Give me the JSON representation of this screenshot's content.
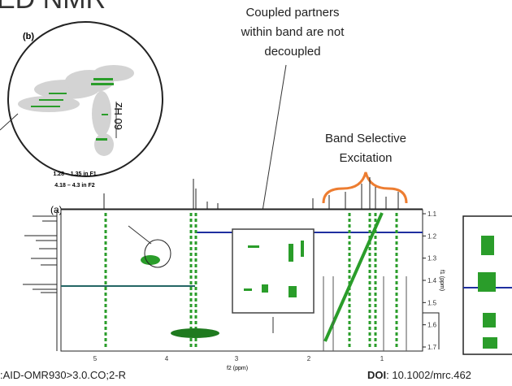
{
  "slide_title": "ED NMR",
  "inset_b": {
    "label": "(b)",
    "coupling": "60 Hz",
    "range_f1": "1.28 – 1.35 in F1",
    "range_f2": "4.18 – 4.3 in F2"
  },
  "callouts": {
    "coupled": [
      "Coupled partners",
      "within band are not",
      "decoupled"
    ],
    "band": [
      "Band Selective",
      "Excitation"
    ]
  },
  "spectrum_a": {
    "label": "(a)",
    "x_axis_label": "f2 (ppm)",
    "x_ticks": [
      "5",
      "4",
      "3",
      "2",
      "1"
    ],
    "y_axis_label": "f1 (ppm)",
    "y_ticks": [
      "1.1",
      "1.2",
      "1.3",
      "1.4",
      "1.5",
      "1.6",
      "1.7"
    ]
  },
  "footer": {
    "left": ":AID-OMR930>3.0.CO;2-R",
    "doi_label": "DOI",
    "doi_value": ": 10.1002/mrc.462"
  }
}
